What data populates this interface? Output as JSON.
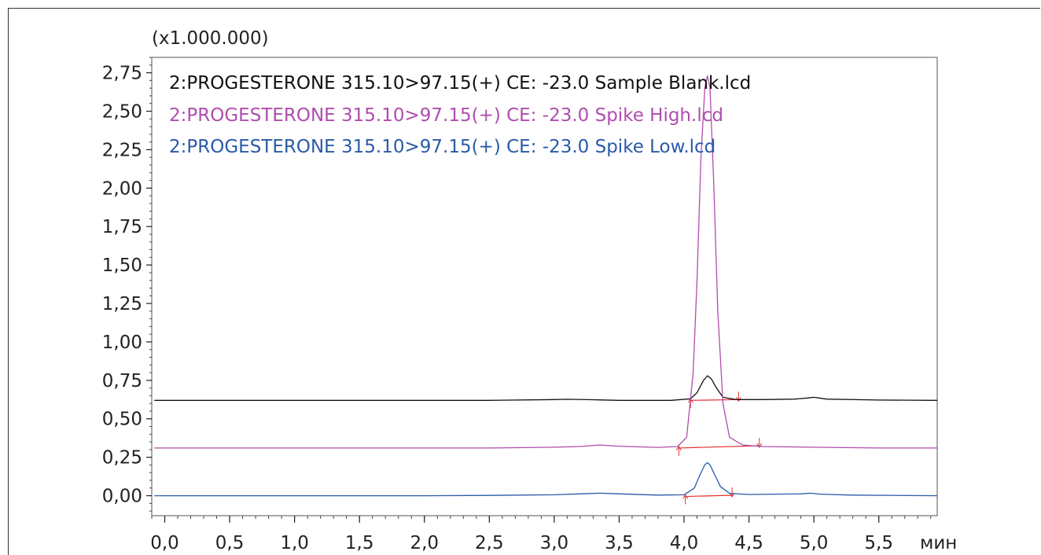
{
  "chart_data": {
    "type": "line",
    "scale_label": "(x1.000.000)",
    "x_unit": "мин",
    "xlim": [
      -0.1,
      5.95
    ],
    "ylim": [
      -0.13,
      2.85
    ],
    "x_ticks": [
      0.0,
      0.5,
      1.0,
      1.5,
      2.0,
      2.5,
      3.0,
      3.5,
      4.0,
      4.5,
      5.0,
      5.5
    ],
    "x_tick_labels": [
      "0,0",
      "0,5",
      "1,0",
      "1,5",
      "2,0",
      "2,5",
      "3,0",
      "3,5",
      "4,0",
      "4,5",
      "5,0",
      "5,5"
    ],
    "y_ticks": [
      0.0,
      0.25,
      0.5,
      0.75,
      1.0,
      1.25,
      1.5,
      1.75,
      2.0,
      2.25,
      2.5,
      2.75
    ],
    "y_tick_labels": [
      "0,00",
      "0,25",
      "0,50",
      "0,75",
      "1,00",
      "1,25",
      "1,50",
      "1,75",
      "2,00",
      "2,25",
      "2,50",
      "2,75"
    ],
    "series": [
      {
        "name": "2:PROGESTERONE 315.10>97.15(+) CE: -23.0 Sample Blank.lcd",
        "color": "#111111",
        "x": [
          -0.08,
          0.5,
          1.0,
          1.5,
          2.0,
          2.5,
          3.0,
          3.1,
          3.3,
          3.5,
          3.9,
          4.05,
          4.1,
          4.15,
          4.18,
          4.21,
          4.25,
          4.3,
          4.4,
          4.6,
          4.85,
          4.95,
          5.0,
          5.1,
          5.5,
          5.95
        ],
        "y": [
          0.62,
          0.62,
          0.62,
          0.62,
          0.62,
          0.62,
          0.625,
          0.627,
          0.624,
          0.62,
          0.62,
          0.63,
          0.67,
          0.75,
          0.78,
          0.76,
          0.7,
          0.64,
          0.625,
          0.625,
          0.628,
          0.635,
          0.64,
          0.628,
          0.622,
          0.62
        ]
      },
      {
        "name": "2:PROGESTERONE 315.10>97.15(+) CE: -23.0 Spike High.lcd",
        "color": "#b04cae",
        "x": [
          -0.08,
          0.5,
          1.0,
          1.5,
          2.0,
          2.5,
          3.0,
          3.2,
          3.35,
          3.5,
          3.8,
          3.95,
          4.02,
          4.07,
          4.1,
          4.13,
          4.16,
          4.18,
          4.2,
          4.23,
          4.26,
          4.3,
          4.35,
          4.45,
          4.6,
          5.0,
          5.5,
          5.95
        ],
        "y": [
          0.31,
          0.31,
          0.31,
          0.31,
          0.31,
          0.31,
          0.315,
          0.32,
          0.33,
          0.322,
          0.314,
          0.32,
          0.38,
          0.8,
          1.4,
          2.2,
          2.65,
          2.73,
          2.65,
          2.0,
          1.2,
          0.6,
          0.38,
          0.33,
          0.32,
          0.315,
          0.31,
          0.31
        ]
      },
      {
        "name": "2:PROGESTERONE 315.10>97.15(+) CE: -23.0 Spike Low.lcd",
        "color": "#2a5aa8",
        "x": [
          -0.08,
          0.5,
          1.0,
          1.5,
          2.0,
          2.5,
          3.0,
          3.2,
          3.35,
          3.5,
          3.8,
          4.0,
          4.08,
          4.12,
          4.16,
          4.18,
          4.2,
          4.24,
          4.28,
          4.35,
          4.5,
          4.9,
          4.98,
          5.05,
          5.3,
          5.95
        ],
        "y": [
          0.0,
          0.0,
          0.0,
          0.0,
          0.0,
          0.002,
          0.006,
          0.012,
          0.016,
          0.012,
          0.004,
          0.006,
          0.05,
          0.13,
          0.2,
          0.215,
          0.2,
          0.13,
          0.06,
          0.015,
          0.008,
          0.012,
          0.016,
          0.01,
          0.004,
          0.0
        ]
      }
    ],
    "integration_baselines": [
      {
        "color": "#e03030",
        "x1": 4.05,
        "y1": 0.62,
        "x2": 4.42,
        "y2": 0.625
      },
      {
        "color": "#e03030",
        "x1": 3.96,
        "y1": 0.31,
        "x2": 4.58,
        "y2": 0.325
      },
      {
        "color": "#e03030",
        "x1": 4.01,
        "y1": -0.005,
        "x2": 4.37,
        "y2": 0.003
      }
    ]
  }
}
